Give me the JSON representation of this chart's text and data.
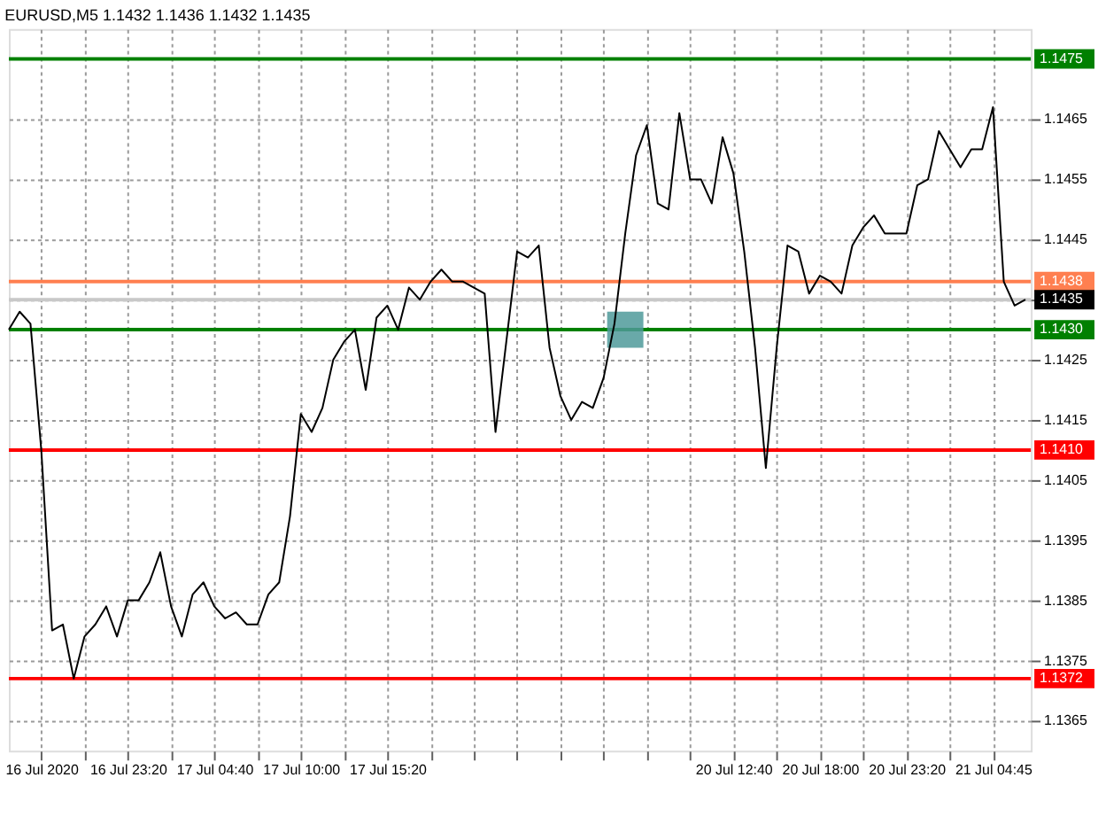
{
  "chart_data": {
    "type": "line",
    "title": "EURUSD,M5 1.1432 1.1436 1.1432 1.1435",
    "categories": [
      null,
      null,
      null,
      "16 Jul 2020",
      null,
      null,
      null,
      null,
      null,
      null,
      null,
      "16 Jul 23:20",
      null,
      null,
      null,
      null,
      null,
      null,
      null,
      "17 Jul 04:40",
      null,
      null,
      null,
      null,
      null,
      null,
      null,
      "17 Jul 10:00",
      null,
      null,
      null,
      null,
      null,
      null,
      null,
      "17 Jul 15:20",
      null,
      null,
      null,
      null,
      null,
      null,
      null,
      null,
      null,
      null,
      null,
      null,
      null,
      null,
      null,
      null,
      null,
      null,
      null,
      null,
      null,
      null,
      null,
      null,
      null,
      null,
      null,
      null,
      null,
      null,
      null,
      "20 Jul 12:40",
      null,
      null,
      null,
      null,
      null,
      null,
      null,
      "20 Jul 18:00",
      null,
      null,
      null,
      null,
      null,
      null,
      null,
      "20 Jul 23:20",
      null,
      null,
      null,
      null,
      null,
      null,
      null,
      "21 Jul 04:45",
      null,
      null,
      null
    ],
    "ylim": [
      1.136,
      1.148
    ],
    "yticks": [
      1.1365,
      1.1375,
      1.1385,
      1.1395,
      1.1405,
      1.1415,
      1.1425,
      1.1435,
      1.1445,
      1.1455,
      1.1465
    ],
    "grid": true,
    "marker": "none",
    "line_style": "solid",
    "series": [
      {
        "type": "line",
        "color": "#000000",
        "values": [
          1.143,
          1.1433,
          1.1431,
          1.141,
          1.138,
          1.1381,
          1.1372,
          1.1379,
          1.1381,
          1.1384,
          1.1379,
          1.1385,
          1.1385,
          1.1388,
          1.1393,
          1.1384,
          1.1379,
          1.1386,
          1.1388,
          1.1384,
          1.1382,
          1.1383,
          1.1381,
          1.1381,
          1.1386,
          1.1388,
          1.1399,
          1.1416,
          1.1413,
          1.1417,
          1.1425,
          1.1428,
          1.143,
          1.142,
          1.1432,
          1.1434,
          1.143,
          1.1437,
          1.1435,
          1.1438,
          1.144,
          1.1438,
          1.1438,
          1.1437,
          1.1436,
          1.1413,
          1.1428,
          1.1443,
          1.1442,
          1.1444,
          1.1427,
          1.1419,
          1.1415,
          1.1418,
          1.1417,
          1.1422,
          1.1431,
          1.1446,
          1.1459,
          1.1464,
          1.1451,
          1.145,
          1.1466,
          1.1455,
          1.1455,
          1.1451,
          1.1462,
          1.1456,
          1.1443,
          1.1427,
          1.1407,
          1.1427,
          1.1444,
          1.1443,
          1.1436,
          1.1439,
          1.1438,
          1.1436,
          1.1444,
          1.1447,
          1.1449,
          1.1446,
          1.1446,
          1.1446,
          1.1454,
          1.1455,
          1.1463,
          1.146,
          1.1457,
          1.146,
          1.146,
          1.1467,
          1.1438,
          1.1434,
          1.1435
        ]
      },
      {
        "type": "scatter",
        "marker": "square",
        "color": "#4f9a9a",
        "values": [
          null,
          null,
          null,
          null,
          null,
          null,
          null,
          null,
          null,
          null,
          null,
          null,
          null,
          null,
          null,
          null,
          null,
          null,
          null,
          null,
          null,
          null,
          null,
          null,
          null,
          null,
          null,
          null,
          null,
          null,
          null,
          null,
          null,
          null,
          null,
          null,
          null,
          null,
          null,
          null,
          null,
          null,
          null,
          null,
          null,
          null,
          null,
          null,
          null,
          null,
          null,
          null,
          null,
          null,
          null,
          null,
          null,
          1.143,
          null,
          null,
          null,
          null,
          null,
          null,
          null,
          null,
          null,
          null,
          null,
          null,
          null,
          null,
          null,
          null,
          null,
          null,
          null,
          null,
          null,
          null,
          null,
          null,
          null,
          null,
          null,
          null,
          null,
          null,
          null,
          null,
          null,
          null,
          null,
          null,
          null
        ]
      }
    ],
    "ref_lines": [
      {
        "axis": "y",
        "value": 1.1475,
        "label": "1.1475",
        "color": "#008000"
      },
      {
        "axis": "y",
        "value": 1.1438,
        "label": "1.1438",
        "color": "#ff7f50"
      },
      {
        "axis": "y",
        "value": 1.1435,
        "label": "1.1435",
        "color": "#c8c8c8"
      },
      {
        "axis": "y",
        "value": 1.143,
        "label": "1.1430",
        "color": "#008000"
      },
      {
        "axis": "y",
        "value": 1.141,
        "label": "1.1410",
        "color": "#ff0000"
      },
      {
        "axis": "y",
        "value": 1.1372,
        "label": "1.1372",
        "color": "#ff0000"
      }
    ]
  }
}
